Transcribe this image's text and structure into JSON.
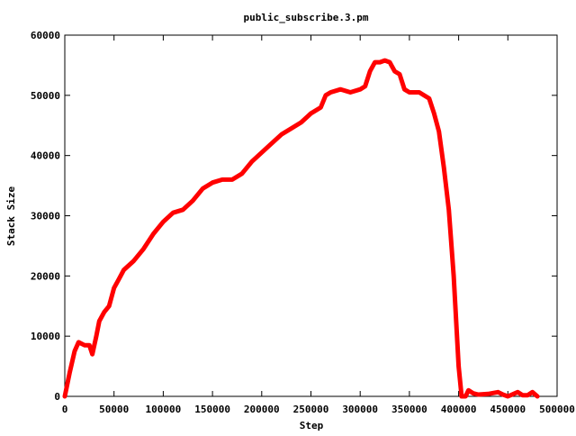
{
  "chart_data": {
    "type": "line",
    "title": "public_subscribe.3.pm",
    "xlabel": "Step",
    "ylabel": "Stack Size",
    "xlim": [
      0,
      500000
    ],
    "ylim": [
      0,
      60000
    ],
    "xticks": [
      0,
      50000,
      100000,
      150000,
      200000,
      250000,
      300000,
      350000,
      400000,
      450000,
      500000
    ],
    "yticks": [
      0,
      10000,
      20000,
      30000,
      40000,
      50000,
      60000
    ],
    "grid": false,
    "legend": "none",
    "series": [
      {
        "color": "#ff0000",
        "x": [
          0,
          5000,
          10000,
          14000,
          20000,
          25000,
          28000,
          32000,
          35000,
          40000,
          45000,
          50000,
          55000,
          60000,
          70000,
          80000,
          90000,
          100000,
          110000,
          120000,
          130000,
          140000,
          150000,
          160000,
          170000,
          180000,
          190000,
          200000,
          210000,
          220000,
          230000,
          240000,
          250000,
          260000,
          265000,
          270000,
          280000,
          290000,
          300000,
          305000,
          310000,
          315000,
          320000,
          325000,
          330000,
          335000,
          340000,
          345000,
          350000,
          360000,
          370000,
          375000,
          380000,
          385000,
          390000,
          395000,
          400000,
          403000,
          405000,
          407000,
          410000,
          415000,
          420000,
          430000,
          440000,
          445000,
          450000,
          460000,
          465000,
          470000,
          475000,
          480000
        ],
        "y": [
          0,
          4000,
          7500,
          9000,
          8500,
          8500,
          7000,
          10000,
          12500,
          14000,
          15000,
          18000,
          19500,
          21000,
          22500,
          24500,
          27000,
          29000,
          30500,
          31000,
          32500,
          34500,
          35500,
          36000,
          36000,
          37000,
          39000,
          40500,
          42000,
          43500,
          44500,
          45500,
          47000,
          48000,
          50000,
          50500,
          51000,
          50500,
          51000,
          51500,
          54000,
          55500,
          55500,
          55800,
          55500,
          54000,
          53500,
          51000,
          50500,
          50500,
          49500,
          47000,
          44000,
          38000,
          31000,
          20000,
          5000,
          0,
          0,
          0,
          1000,
          500,
          300,
          400,
          700,
          300,
          0,
          700,
          200,
          200,
          700,
          0
        ]
      }
    ]
  }
}
